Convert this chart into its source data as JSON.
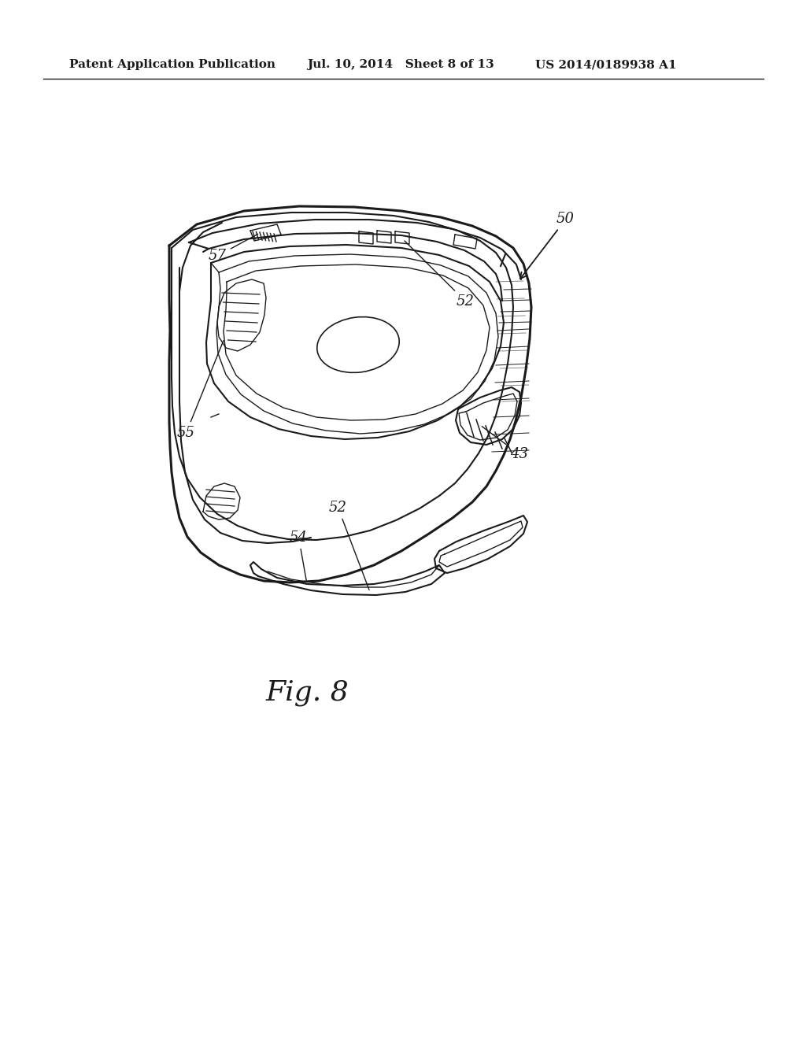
{
  "bg_color": "#ffffff",
  "header_left": "Patent Application Publication",
  "header_mid": "Jul. 10, 2014   Sheet 8 of 13",
  "header_right": "US 2014/0189938 A1",
  "fig_label": "Fig. 8",
  "line_color": "#1a1a1a",
  "label_fontsize": 13,
  "header_fontsize": 11,
  "fig_label_fontsize": 26,
  "page_width": 10.24,
  "page_height": 13.2,
  "dpi": 100
}
